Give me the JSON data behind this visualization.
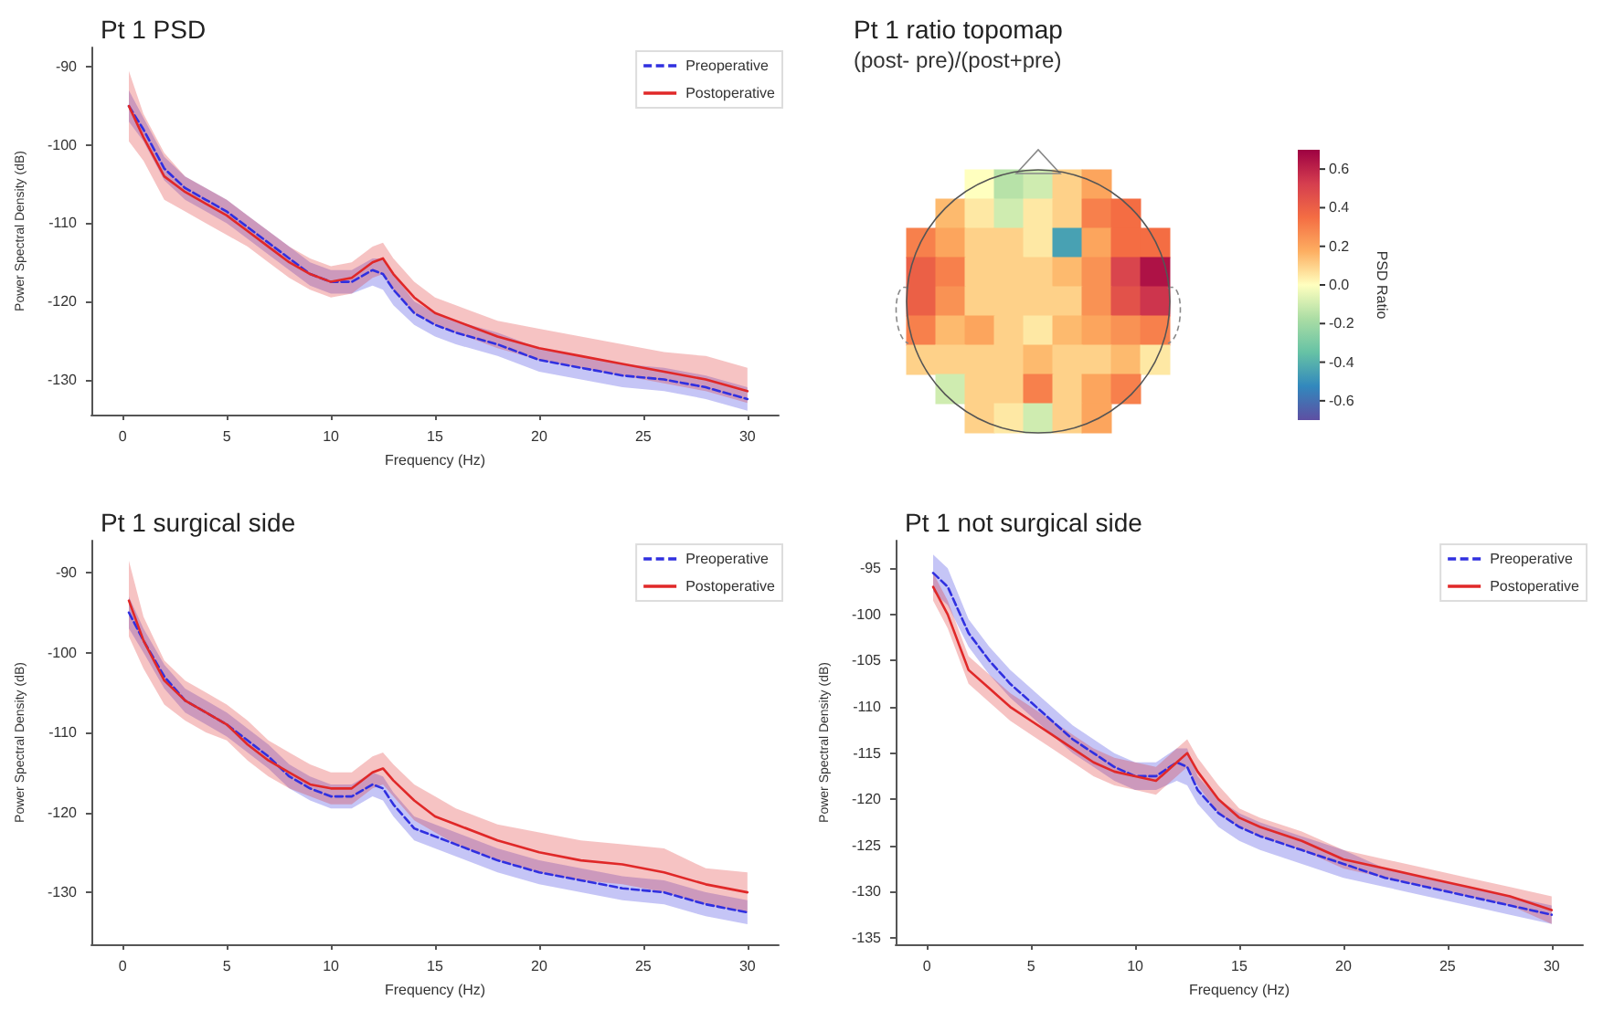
{
  "chart_data": [
    {
      "type": "line",
      "title": "Pt 1 PSD",
      "xlabel": "Frequency (Hz)",
      "ylabel": "Power Spectral Density (dB)",
      "x": [
        0.3,
        1,
        2,
        3,
        4,
        5,
        6,
        7,
        8,
        9,
        10,
        11,
        12,
        12.5,
        13,
        14,
        15,
        16,
        18,
        20,
        22,
        24,
        26,
        28,
        30
      ],
      "xlim": [
        -1.5,
        31.5
      ],
      "xticks": [
        0,
        5,
        10,
        15,
        20,
        25,
        30
      ],
      "ylim": [
        -134.5,
        -87.5
      ],
      "yticks": [
        -130,
        -120,
        -110,
        -100,
        -90
      ],
      "grid": false,
      "legend": "top right",
      "marker": "none",
      "series": [
        {
          "name": "Preoperative",
          "color": "#3030e0",
          "line_style": "dashed",
          "values": [
            -95,
            -98,
            -103,
            -105.5,
            -107,
            -108.5,
            -110.5,
            -112.5,
            -114.5,
            -116.5,
            -117.5,
            -117.5,
            -116,
            -116.5,
            -118.5,
            -121.5,
            -123,
            -124,
            -125.5,
            -127.5,
            -128.5,
            -129.5,
            -130,
            -131,
            -132.5
          ],
          "lower": [
            -97,
            -99.5,
            -104.5,
            -107,
            -108.5,
            -110,
            -112,
            -114,
            -116,
            -118,
            -119,
            -119,
            -118,
            -118.5,
            -120.5,
            -123,
            -124.5,
            -125.5,
            -127,
            -129,
            -130,
            -131,
            -131.5,
            -132.5,
            -134
          ],
          "upper": [
            -93,
            -96.5,
            -101.5,
            -104,
            -105.5,
            -107,
            -109,
            -111,
            -113,
            -115,
            -116,
            -116,
            -114.5,
            -114.5,
            -116.5,
            -120,
            -121.5,
            -122.5,
            -124,
            -126,
            -127,
            -128,
            -128.5,
            -129.5,
            -131
          ]
        },
        {
          "name": "Postoperative",
          "color": "#e02828",
          "line_style": "solid",
          "values": [
            -95,
            -99,
            -104,
            -106,
            -107.5,
            -109,
            -111,
            -113,
            -115,
            -116.5,
            -117.5,
            -117,
            -115,
            -114.5,
            -116.5,
            -119.5,
            -121.5,
            -122.5,
            -124.5,
            -126,
            -127,
            -128,
            -129,
            -130,
            -131.5
          ],
          "lower": [
            -99.5,
            -102,
            -107,
            -108.5,
            -110,
            -111.5,
            -113,
            -115,
            -117,
            -118.5,
            -119.5,
            -119,
            -117,
            -116.5,
            -118.5,
            -121.5,
            -123,
            -124,
            -126,
            -127.5,
            -128.5,
            -129.5,
            -130.5,
            -131.5,
            -133
          ],
          "upper": [
            -90.5,
            -96,
            -101,
            -104,
            -105.5,
            -107,
            -109,
            -111,
            -113,
            -114.5,
            -115.5,
            -115,
            -113,
            -112.5,
            -114.5,
            -117.5,
            -119.5,
            -120.5,
            -122.5,
            -123.5,
            -124.5,
            -125.5,
            -126.5,
            -127,
            -128.5
          ]
        }
      ]
    },
    {
      "type": "heatmap",
      "title": "Pt 1 ratio topomap",
      "subtitle": "(post- pre)/(post+pre)",
      "clabel": "PSD Ratio",
      "clim": [
        -0.7,
        0.7
      ],
      "cticks": [
        -0.6,
        -0.4,
        -0.2,
        {
          "value": 0,
          "label": "0.0"
        },
        0.2,
        0.4,
        0.6
      ],
      "categories": [
        null,
        null,
        null,
        null,
        null,
        null,
        null,
        null,
        null
      ],
      "y_categories": [
        null,
        null,
        null,
        null,
        null,
        null,
        null,
        null,
        null
      ],
      "cells": [
        [
          null,
          null,
          0.0,
          -0.15,
          -0.1,
          0.1,
          0.2,
          null,
          null
        ],
        [
          null,
          0.15,
          0.05,
          -0.1,
          0.05,
          0.1,
          0.3,
          0.35,
          null
        ],
        [
          0.3,
          0.2,
          0.1,
          0.1,
          0.05,
          -0.45,
          0.2,
          0.35,
          0.35
        ],
        [
          0.4,
          0.3,
          0.1,
          0.1,
          0.1,
          0.15,
          0.25,
          0.5,
          0.65
        ],
        [
          0.4,
          0.25,
          0.1,
          0.1,
          0.1,
          0.1,
          0.25,
          0.45,
          0.55
        ],
        [
          0.3,
          0.15,
          0.2,
          0.1,
          0.05,
          0.15,
          0.2,
          0.25,
          0.3
        ],
        [
          0.1,
          0.1,
          0.1,
          0.1,
          0.15,
          0.1,
          0.1,
          0.15,
          0.05
        ],
        [
          null,
          -0.1,
          0.1,
          0.1,
          0.3,
          0.1,
          0.2,
          0.3,
          null
        ],
        [
          null,
          null,
          0.1,
          0.05,
          -0.1,
          0.1,
          0.2,
          null,
          null
        ]
      ]
    },
    {
      "type": "line",
      "title": "Pt 1 surgical side",
      "xlabel": "Frequency (Hz)",
      "ylabel": "Power Spectral Density (dB)",
      "x": [
        0.3,
        1,
        2,
        3,
        4,
        5,
        6,
        7,
        8,
        9,
        10,
        11,
        12,
        12.5,
        13,
        14,
        15,
        16,
        18,
        20,
        22,
        24,
        26,
        28,
        30
      ],
      "xlim": [
        -1.5,
        31.5
      ],
      "xticks": [
        0,
        5,
        10,
        15,
        20,
        25,
        30
      ],
      "ylim": [
        -136.5,
        -86
      ],
      "yticks": [
        -130,
        -120,
        -110,
        -100,
        -90
      ],
      "grid": false,
      "legend": "top right",
      "marker": "none",
      "series": [
        {
          "name": "Preoperative",
          "color": "#3030e0",
          "line_style": "dashed",
          "values": [
            -95,
            -98.5,
            -103,
            -106,
            -107.5,
            -109,
            -111,
            -113,
            -115.5,
            -117,
            -118,
            -118,
            -116.5,
            -117,
            -119,
            -122,
            -123,
            -124,
            -126,
            -127.5,
            -128.5,
            -129.5,
            -130,
            -131.5,
            -132.5
          ],
          "lower": [
            -97,
            -100,
            -104.5,
            -107.5,
            -109,
            -110.5,
            -112.5,
            -114.5,
            -117,
            -118.5,
            -119.5,
            -119.5,
            -118,
            -118.5,
            -120.5,
            -123.5,
            -124.5,
            -125.5,
            -127.5,
            -129,
            -130,
            -131,
            -131.5,
            -133,
            -134
          ],
          "upper": [
            -93,
            -97,
            -101.5,
            -104.5,
            -106,
            -107.5,
            -109.5,
            -111.5,
            -114,
            -115.5,
            -116.5,
            -116.5,
            -115,
            -115.5,
            -117.5,
            -120.5,
            -121.5,
            -122.5,
            -124.5,
            -126,
            -127,
            -128,
            -128.5,
            -130,
            -131
          ]
        },
        {
          "name": "Postoperative",
          "color": "#e02828",
          "line_style": "solid",
          "values": [
            -93.5,
            -98.5,
            -103.5,
            -106,
            -107.5,
            -109,
            -111.5,
            -113.5,
            -115,
            -116.5,
            -117,
            -117,
            -115,
            -114.5,
            -116,
            -118.5,
            -120.5,
            -121.5,
            -123.5,
            -125,
            -126,
            -126.5,
            -127.5,
            -129,
            -130
          ],
          "lower": [
            -98,
            -102,
            -106.5,
            -108.5,
            -110,
            -111,
            -113.5,
            -115.5,
            -117,
            -118,
            -119,
            -119,
            -117,
            -116.5,
            -118,
            -121,
            -122.5,
            -124,
            -126,
            -127.5,
            -128.5,
            -129,
            -130,
            -131.5,
            -132.5
          ],
          "upper": [
            -88.5,
            -95.5,
            -101,
            -103.5,
            -105,
            -106.5,
            -108.5,
            -111,
            -112.5,
            -114,
            -115,
            -115,
            -113,
            -112.5,
            -114,
            -116.5,
            -118,
            -119.5,
            -121.5,
            -122.5,
            -123.5,
            -124,
            -124.5,
            -127,
            -127.5
          ]
        }
      ]
    },
    {
      "type": "line",
      "title": "Pt 1 not surgical side",
      "xlabel": "Frequency (Hz)",
      "ylabel": "Power Spectral Density (dB)",
      "x": [
        0.3,
        1,
        2,
        3,
        4,
        5,
        6,
        7,
        8,
        9,
        10,
        11,
        12,
        12.5,
        13,
        14,
        15,
        16,
        18,
        20,
        22,
        24,
        26,
        28,
        30
      ],
      "xlim": [
        -1.5,
        31.5
      ],
      "xticks": [
        0,
        5,
        10,
        15,
        20,
        25,
        30
      ],
      "ylim": [
        -135.7,
        -92
      ],
      "yticks": [
        -135,
        -130,
        -125,
        -120,
        -115,
        -110,
        -105,
        -100,
        -95
      ],
      "grid": false,
      "legend": "top right",
      "marker": "none",
      "series": [
        {
          "name": "Preoperative",
          "color": "#3030e0",
          "line_style": "dashed",
          "values": [
            -95.5,
            -97,
            -102,
            -105,
            -107.5,
            -109.5,
            -111.5,
            -113.5,
            -115,
            -116.5,
            -117.5,
            -117.5,
            -116,
            -116.5,
            -119,
            -121.5,
            -123,
            -124,
            -125.5,
            -127,
            -128.5,
            -129.5,
            -130.5,
            -131.5,
            -132.5
          ],
          "lower": [
            -97.5,
            -99,
            -103.5,
            -106.5,
            -109,
            -111,
            -113,
            -115,
            -116.5,
            -118,
            -119,
            -119,
            -118,
            -118.5,
            -120.5,
            -123,
            -124.5,
            -125.5,
            -127,
            -128.5,
            -129.5,
            -130.5,
            -131.5,
            -132.5,
            -133.5
          ],
          "upper": [
            -93.5,
            -95,
            -100.5,
            -103.5,
            -106,
            -108,
            -110,
            -112,
            -113.5,
            -115,
            -116,
            -116,
            -114.5,
            -114.5,
            -117.5,
            -120,
            -121.5,
            -122.5,
            -124,
            -125.5,
            -127.5,
            -128.5,
            -129.5,
            -130.5,
            -131.5
          ]
        },
        {
          "name": "Postoperative",
          "color": "#e02828",
          "line_style": "solid",
          "values": [
            -97,
            -100,
            -106,
            -108,
            -110,
            -111.5,
            -113,
            -114.5,
            -116,
            -117,
            -117.5,
            -118,
            -116,
            -115,
            -117,
            -120,
            -122,
            -123,
            -124.5,
            -126.5,
            -127.5,
            -128.5,
            -129.5,
            -130.5,
            -132
          ],
          "lower": [
            -98.5,
            -101.5,
            -107.5,
            -109.5,
            -111.5,
            -113,
            -114.5,
            -116,
            -117.5,
            -118.5,
            -119,
            -119.5,
            -117.5,
            -116.5,
            -118.5,
            -121.5,
            -123,
            -124,
            -125.5,
            -127.5,
            -128.5,
            -129.5,
            -130.5,
            -131.5,
            -133.5
          ],
          "upper": [
            -95.5,
            -98.5,
            -104.5,
            -106.5,
            -108.5,
            -110,
            -111.5,
            -113,
            -114.5,
            -115.5,
            -116,
            -116.5,
            -114.5,
            -113.5,
            -115.5,
            -118.5,
            -121,
            -122,
            -123.5,
            -125.5,
            -126.5,
            -127.5,
            -128.5,
            -129.5,
            -130.5
          ]
        }
      ]
    }
  ]
}
